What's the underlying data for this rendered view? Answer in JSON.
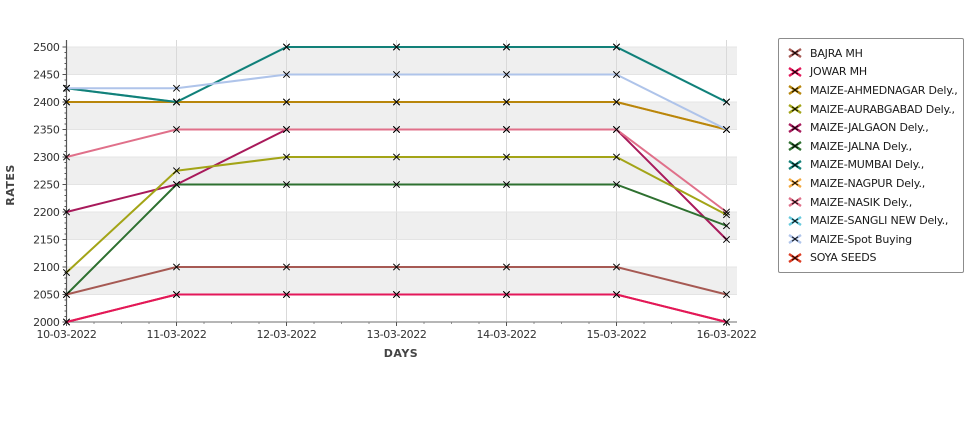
{
  "chart_data": {
    "type": "line",
    "title": "",
    "xlabel": "DAYS",
    "ylabel": "RATES",
    "x": [
      "10-03-2022",
      "11-03-2022",
      "12-03-2022",
      "13-03-2022",
      "14-03-2022",
      "15-03-2022",
      "16-03-2022"
    ],
    "y_ticks": [
      2000,
      2050,
      2100,
      2150,
      2200,
      2250,
      2300,
      2350,
      2400,
      2450,
      2500
    ],
    "ylim": [
      2000,
      2500
    ],
    "y_minor_step": 10,
    "grid": true,
    "legend_position": "right",
    "marker": "x",
    "marker_color": "#000000",
    "band_color": "#efefef",
    "series": [
      {
        "name": "BAJRA MH",
        "color": "#A65953",
        "values": [
          2050,
          2100,
          2100,
          2100,
          2100,
          2100,
          2050
        ]
      },
      {
        "name": "JOWAR MH",
        "color": "#E3175A",
        "values": [
          2000,
          2050,
          2050,
          2050,
          2050,
          2050,
          2000
        ]
      },
      {
        "name": "MAIZE-AHMEDNAGAR Dely.,",
        "color": "#B8860B",
        "values": [
          2400,
          2400,
          2400,
          2400,
          2400,
          2400,
          2350
        ]
      },
      {
        "name": "MAIZE-AURABGABAD Dely.,",
        "color": "#A3A417",
        "values": [
          2090,
          2275,
          2300,
          2300,
          2300,
          2300,
          2195
        ]
      },
      {
        "name": "MAIZE-JALGAON Dely.,",
        "color": "#A81A5B",
        "values": [
          2200,
          2250,
          2350,
          2350,
          2350,
          2350,
          2150
        ]
      },
      {
        "name": "MAIZE-JALNA Dely.,",
        "color": "#2E7030",
        "values": [
          2050,
          2250,
          2250,
          2250,
          2250,
          2250,
          2175
        ]
      },
      {
        "name": "MAIZE-MUMBAI Dely.,",
        "color": "#128078",
        "values": [
          2425,
          2400,
          2500,
          2500,
          2500,
          2500,
          2400
        ]
      },
      {
        "name": "MAIZE-NAGPUR Dely.,",
        "color": "#F3A83D",
        "values": [
          2400,
          2400,
          2400,
          2400,
          2400,
          2400,
          2350
        ]
      },
      {
        "name": "MAIZE-NASIK Dely.,",
        "color": "#E0708A",
        "values": [
          2300,
          2350,
          2350,
          2350,
          2350,
          2350,
          2200
        ]
      },
      {
        "name": "MAIZE-SANGLI NEW Dely.,",
        "color": "#67CADD",
        "values": [
          2425,
          2400,
          2500,
          2500,
          2500,
          2500,
          2400
        ]
      },
      {
        "name": "MAIZE-Spot Buying",
        "color": "#AFC4EA",
        "values": [
          2425,
          2425,
          2450,
          2450,
          2450,
          2450,
          2350
        ]
      },
      {
        "name": "SOYA SEEDS",
        "color": "#DD3B22",
        "values": [
          2000,
          2050,
          2050,
          2050,
          2050,
          2050,
          2000
        ]
      }
    ],
    "draw_order": [
      "MAIZE-NAGPUR Dely.,",
      "MAIZE-SANGLI NEW Dely.,",
      "SOYA SEEDS",
      "MAIZE-JALGAON Dely.,",
      "MAIZE-JALNA Dely.,",
      "MAIZE-AURABGABAD Dely.,",
      "MAIZE-NASIK Dely.,",
      "MAIZE-AHMEDNAGAR Dely.,",
      "MAIZE-MUMBAI Dely.,",
      "MAIZE-Spot Buying",
      "BAJRA MH",
      "JOWAR MH"
    ]
  }
}
